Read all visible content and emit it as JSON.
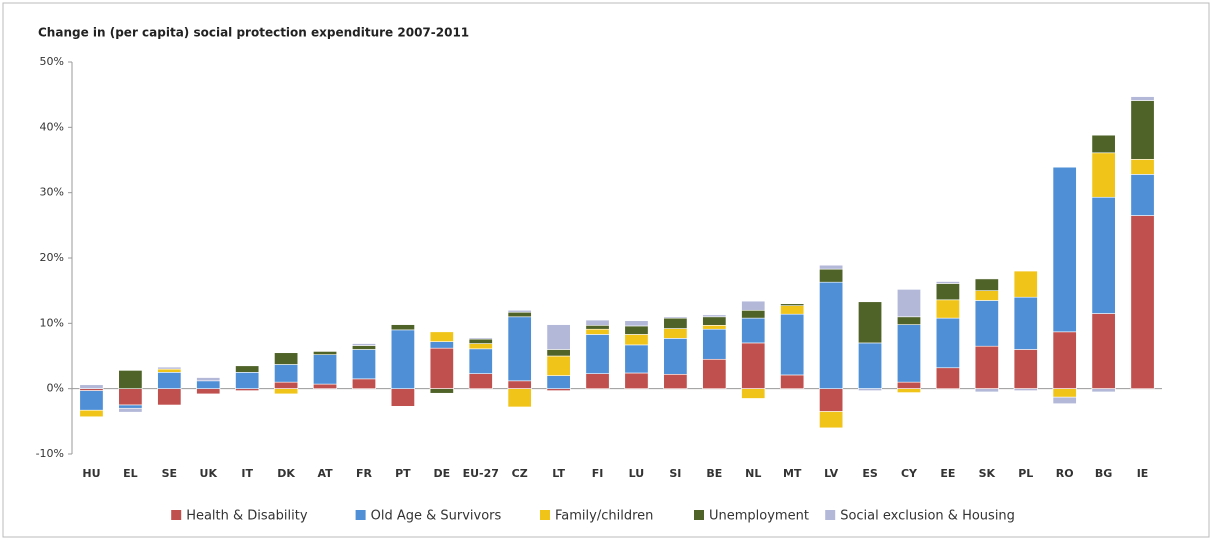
{
  "chart_data": {
    "type": "stacked_bar",
    "title": "Change in (per capita) social protection expenditure 2007-2011",
    "categories": [
      "HU",
      "EL",
      "SE",
      "UK",
      "IT",
      "DK",
      "AT",
      "FR",
      "PT",
      "DE",
      "EU-27",
      "CZ",
      "LT",
      "FI",
      "LU",
      "SI",
      "BE",
      "NL",
      "MT",
      "LV",
      "ES",
      "CY",
      "EE",
      "SK",
      "PL",
      "RO",
      "BG",
      "IE"
    ],
    "series": [
      {
        "name": "Health & Disability",
        "color": "#c0504d",
        "values": [
          -0.3,
          -2.5,
          -2.5,
          -0.8,
          -0.3,
          1,
          0.7,
          1.5,
          -2.7,
          6.2,
          2.3,
          1.2,
          -0.3,
          2.3,
          2.4,
          2.2,
          4.5,
          7,
          2.1,
          -3.5,
          0,
          1,
          3.2,
          6.5,
          6,
          8.7,
          11.5,
          26.5
        ]
      },
      {
        "name": "Old Age & Survivors",
        "color": "#4f8fd6",
        "values": [
          -3,
          -0.5,
          2.5,
          1.2,
          2.5,
          2.7,
          4.5,
          4.5,
          9,
          1,
          3.8,
          9.8,
          2,
          6,
          4.3,
          5.5,
          4.6,
          3.8,
          9.3,
          16.3,
          7,
          8.8,
          7.6,
          7,
          8,
          25.2,
          17.8,
          6.3
        ]
      },
      {
        "name": "Family/children",
        "color": "#f0c419",
        "values": [
          -1,
          0,
          0.5,
          0,
          0,
          -0.8,
          0,
          0,
          0,
          1.5,
          0.8,
          -2.8,
          3,
          0.8,
          1.6,
          1.5,
          0.6,
          -1.5,
          1.3,
          -2.5,
          0,
          -0.6,
          2.8,
          1.5,
          4,
          -1.3,
          6.8,
          2.3
        ]
      },
      {
        "name": "Unemployment",
        "color": "#4f6228",
        "values": [
          0,
          2.8,
          0,
          0,
          1,
          1.8,
          0.5,
          0.6,
          0.8,
          -0.7,
          0.7,
          0.7,
          1,
          0.6,
          1.3,
          1.6,
          1.3,
          1.2,
          0.3,
          2,
          6.3,
          1.2,
          2.5,
          1.8,
          0,
          0,
          2.7,
          9
        ]
      },
      {
        "name": "Social exclusion & Housing",
        "color": "#b4b8d8",
        "values": [
          0.6,
          -0.6,
          0.3,
          0.5,
          0,
          0,
          0,
          0.3,
          0,
          0,
          0.2,
          0.3,
          3.8,
          0.8,
          0.8,
          0.2,
          0.3,
          1.4,
          0,
          0.6,
          -0.3,
          4.2,
          0.3,
          -0.5,
          -0.3,
          -1,
          -0.5,
          0.6
        ]
      }
    ],
    "ylim": [
      -10,
      50
    ],
    "yticks": [
      {
        "value": -10,
        "label": "-10%"
      },
      {
        "value": 0,
        "label": "0%"
      },
      {
        "value": 10,
        "label": "10%"
      },
      {
        "value": 20,
        "label": "20%"
      },
      {
        "value": 30,
        "label": "30%"
      },
      {
        "value": 40,
        "label": "40%"
      },
      {
        "value": 50,
        "label": "50%"
      }
    ],
    "grid": false
  }
}
